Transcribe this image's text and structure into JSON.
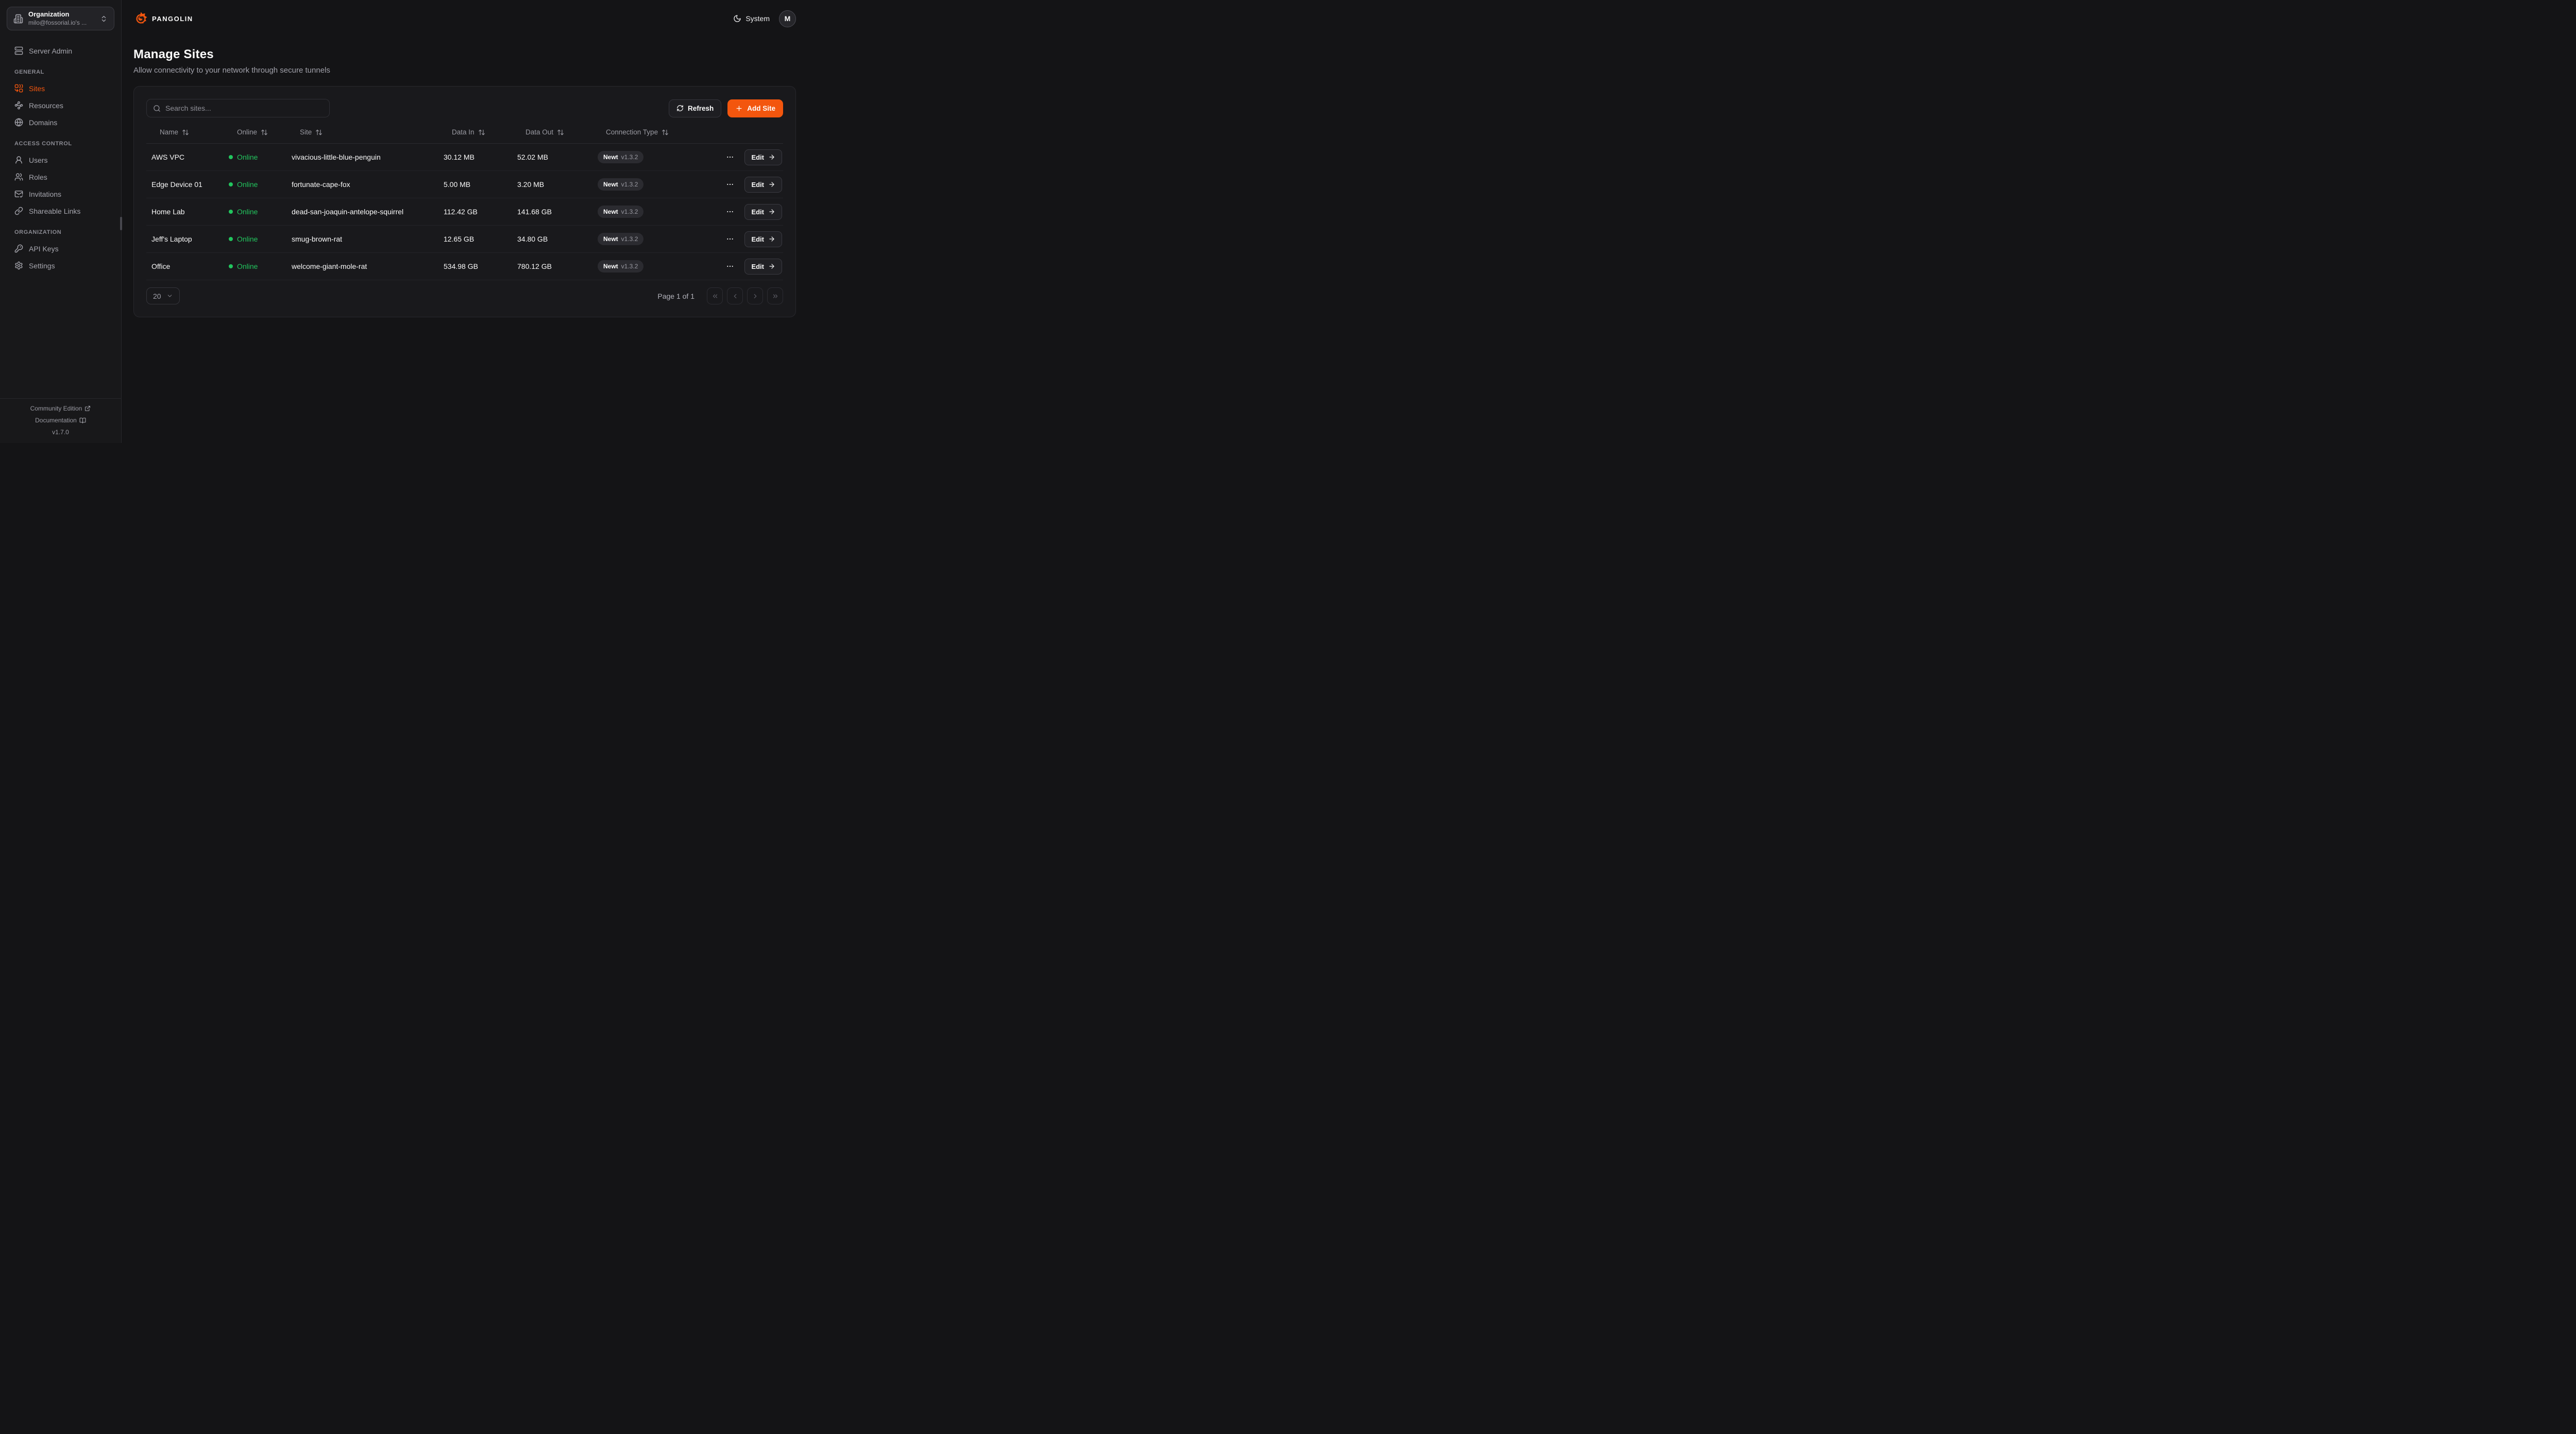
{
  "colors": {
    "accent": "#F3560E",
    "online_green": "#22C55E"
  },
  "sidebar": {
    "org_selector": {
      "label": "Organization",
      "value": "milo@fossorial.io's ...",
      "icon": "building-icon",
      "chevrons": "chevrons-up-down-icon"
    },
    "server_admin": {
      "label": "Server Admin",
      "icon": "server"
    },
    "sections": [
      {
        "title": "GENERAL",
        "items": [
          {
            "label": "Sites",
            "icon": "combine",
            "active": true
          },
          {
            "label": "Resources",
            "icon": "waypoints",
            "active": false
          },
          {
            "label": "Domains",
            "icon": "globe",
            "active": false
          }
        ]
      },
      {
        "title": "ACCESS CONTROL",
        "items": [
          {
            "label": "Users",
            "icon": "user",
            "active": false
          },
          {
            "label": "Roles",
            "icon": "users",
            "active": false
          },
          {
            "label": "Invitations",
            "icon": "mail-check",
            "active": false
          },
          {
            "label": "Shareable Links",
            "icon": "link",
            "active": false
          }
        ]
      },
      {
        "title": "ORGANIZATION",
        "items": [
          {
            "label": "API Keys",
            "icon": "key",
            "active": false
          },
          {
            "label": "Settings",
            "icon": "settings",
            "active": false
          }
        ]
      }
    ],
    "footer": {
      "community_label": "Community Edition",
      "documentation_label": "Documentation",
      "version": "v1.7.0"
    }
  },
  "header": {
    "brand": "PANGOLIN",
    "theme_label": "System",
    "avatar_initial": "M"
  },
  "page": {
    "title": "Manage Sites",
    "subtitle": "Allow connectivity to your network through secure tunnels"
  },
  "toolbar": {
    "search_placeholder": "Search sites...",
    "refresh_label": "Refresh",
    "add_site_label": "Add Site"
  },
  "table": {
    "columns": [
      "Name",
      "Online",
      "Site",
      "Data In",
      "Data Out",
      "Connection Type"
    ],
    "rows": [
      {
        "name": "AWS VPC",
        "status": "Online",
        "site": "vivacious-little-blue-penguin",
        "data_in": "30.12 MB",
        "data_out": "52.02 MB",
        "connection_type": "Newt",
        "connection_version": "v1.3.2",
        "edit_label": "Edit"
      },
      {
        "name": "Edge Device 01",
        "status": "Online",
        "site": "fortunate-cape-fox",
        "data_in": "5.00 MB",
        "data_out": "3.20 MB",
        "connection_type": "Newt",
        "connection_version": "v1.3.2",
        "edit_label": "Edit"
      },
      {
        "name": "Home Lab",
        "status": "Online",
        "site": "dead-san-joaquin-antelope-squirrel",
        "data_in": "112.42 GB",
        "data_out": "141.68 GB",
        "connection_type": "Newt",
        "connection_version": "v1.3.2",
        "edit_label": "Edit"
      },
      {
        "name": "Jeff's Laptop",
        "status": "Online",
        "site": "smug-brown-rat",
        "data_in": "12.65 GB",
        "data_out": "34.80 GB",
        "connection_type": "Newt",
        "connection_version": "v1.3.2",
        "edit_label": "Edit"
      },
      {
        "name": "Office",
        "status": "Online",
        "site": "welcome-giant-mole-rat",
        "data_in": "534.98 GB",
        "data_out": "780.12 GB",
        "connection_type": "Newt",
        "connection_version": "v1.3.2",
        "edit_label": "Edit"
      }
    ]
  },
  "pagination": {
    "page_size": "20",
    "page_info": "Page 1 of 1"
  }
}
